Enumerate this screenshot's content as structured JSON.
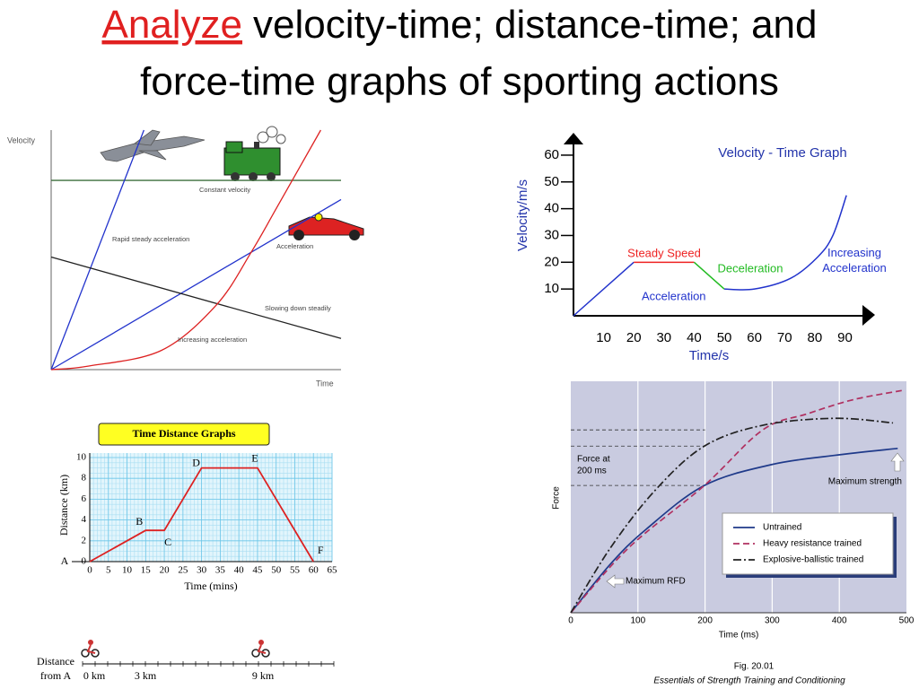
{
  "title": {
    "highlight": "Analyze",
    "line1": "velocity-time; distance-time; and",
    "line2": "force-time graphs of sporting actions"
  },
  "chart_data": [
    {
      "type": "line",
      "y_label": "Velocity",
      "x_label": "Time",
      "xlim": [
        0,
        100
      ],
      "ylim": [
        0,
        100
      ],
      "series": [
        {
          "name": "Constant velocity",
          "color": "#3c6e3c",
          "x": [
            0,
            100
          ],
          "values": [
            79,
            79
          ]
        },
        {
          "name": "Rapid steady acceleration",
          "color": "#2233cc",
          "x": [
            0,
            32
          ],
          "values": [
            0,
            100
          ]
        },
        {
          "name": "Acceleration",
          "color": "#2233cc",
          "x": [
            0,
            100
          ],
          "values": [
            0,
            71
          ]
        },
        {
          "name": "Slowing down steadily",
          "color": "#222222",
          "x": [
            0,
            100
          ],
          "values": [
            47,
            13
          ]
        },
        {
          "name": "Increasing acceleration",
          "color": "#dd2222",
          "x": [
            0,
            13,
            38,
            57,
            69,
            78,
            93
          ],
          "values": [
            0,
            1.5,
            8,
            27,
            49,
            68,
            100
          ]
        }
      ]
    },
    {
      "type": "line",
      "title": "Velocity - Time Graph",
      "x_label": "Time/s",
      "y_label": "Velocity/m/s",
      "xlim": [
        0,
        97
      ],
      "ylim": [
        0,
        64
      ],
      "xticks": [
        10,
        20,
        30,
        40,
        50,
        60,
        70,
        80,
        90
      ],
      "yticks": [
        10,
        20,
        30,
        40,
        50,
        60
      ],
      "series": [
        {
          "name": "Acceleration",
          "color": "#2233cc",
          "x": [
            0,
            20
          ],
          "values": [
            0,
            20
          ]
        },
        {
          "name": "Steady Speed",
          "color": "#ee2222",
          "x": [
            20,
            40
          ],
          "values": [
            20,
            20
          ]
        },
        {
          "name": "Deceleration",
          "color": "#22bb22",
          "x": [
            40,
            50
          ],
          "values": [
            20,
            10
          ]
        },
        {
          "name": "Increasing Acceleration",
          "color": "#2233cc",
          "x": [
            50,
            60,
            72,
            81,
            86,
            90.5
          ],
          "values": [
            10,
            10,
            14,
            22,
            30,
            45
          ]
        }
      ]
    },
    {
      "type": "line",
      "title": "Time Distance Graphs",
      "x_label": "Time (mins)",
      "y_label": "Distance (km)",
      "xlim": [
        0,
        65
      ],
      "ylim": [
        0,
        10
      ],
      "xticks": [
        0,
        5,
        10,
        15,
        20,
        25,
        30,
        35,
        40,
        45,
        50,
        55,
        60,
        65
      ],
      "yticks": [
        0,
        2,
        4,
        6,
        8,
        10
      ],
      "grid": true,
      "series": [
        {
          "color": "#dd2222",
          "x": [
            0,
            15,
            20,
            30,
            45,
            60
          ],
          "values": [
            0,
            3,
            3,
            9,
            9,
            0
          ],
          "point_labels": [
            "A",
            "B",
            "C",
            "D",
            "E",
            "F"
          ]
        }
      ],
      "distance_scale": {
        "label": [
          "Distance",
          "from A"
        ],
        "labels": [
          "0 km",
          "3 km",
          "9 km"
        ]
      }
    },
    {
      "type": "line",
      "x_label": "Time (ms)",
      "y_label": "Force",
      "xlim": [
        0,
        500
      ],
      "ylim": [
        0,
        100
      ],
      "xticks": [
        0,
        100,
        200,
        300,
        400,
        500
      ],
      "grid": true,
      "legend": "lower right",
      "series": [
        {
          "name": "Untrained",
          "color": "#1f3a8a",
          "style": "solid",
          "x": [
            0,
            59,
            112,
            199,
            299,
            393,
            487
          ],
          "values": [
            0,
            21,
            36,
            55,
            64,
            68,
            71
          ]
        },
        {
          "name": "Heavy resistance trained",
          "color": "#b03060",
          "style": "dashed",
          "x": [
            0,
            86,
            199,
            286,
            353,
            420,
            493
          ],
          "values": [
            0,
            28,
            55,
            79,
            86,
            92,
            96
          ]
        },
        {
          "name": "Explosive-ballistic trained",
          "color": "#222222",
          "style": "dashdot",
          "x": [
            0,
            59,
            126,
            199,
            286,
            393,
            480
          ],
          "values": [
            0,
            28,
            53,
            72,
            81,
            84,
            82
          ]
        }
      ],
      "annotations": {
        "force_at": [
          "Force at",
          "200 ms"
        ],
        "max_strength": "Maximum strength",
        "max_rfd": "Maximum RFD"
      },
      "caption": [
        "Fig. 20.01",
        "Essentials of Strength Training and Conditioning"
      ]
    }
  ]
}
